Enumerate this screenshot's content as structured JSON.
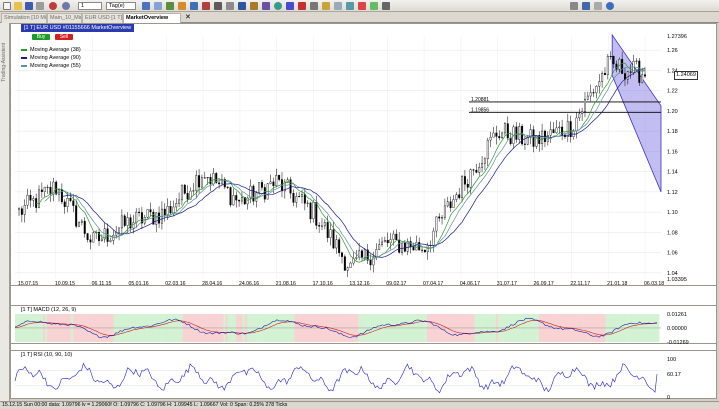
{
  "toolbar": {
    "timeframe_value": "1",
    "period_value": "Tag(e)",
    "icons": [
      "new-icon",
      "open-icon",
      "save-icon",
      "print-icon",
      "chart-type-icon",
      "cursor-icon",
      "crosshair-icon",
      "line-tool-icon",
      "zoom-icon",
      "indicator-icon",
      "settings-icon",
      "window-icon"
    ]
  },
  "tabs": [
    {
      "label": "Simulation [10 Min]",
      "active": false
    },
    {
      "label": "Main_10_Min",
      "active": false
    },
    {
      "label": "EUR USD [1 T]",
      "active": false
    },
    {
      "label": "MarketOverview",
      "active": true
    }
  ],
  "sidestrip_label": "Trading-Assistent",
  "price_pane": {
    "title": "[1 T] EUR USD  #01155666 MarketOverview",
    "buy_label": "Buy",
    "sell_label": "Sell",
    "legend": [
      {
        "label": "Moving Average  (38)",
        "color": "#2b9a2b"
      },
      {
        "label": "Moving Average  (90)",
        "color": "#1a1a8c"
      },
      {
        "label": "Moving Average  (55)",
        "color": "#5e8fa0"
      }
    ],
    "y_ticks": [
      "1.27396",
      "1.26",
      "1.24",
      "1.22",
      "1.20",
      "1.18",
      "1.16",
      "1.14",
      "1.12",
      "1.10",
      "1.08",
      "1.06",
      "1.04",
      "1.03395"
    ],
    "current_price": "1.24069",
    "level_labels": [
      "1.20881",
      "1.19856"
    ],
    "channel_color": "#7b6fe0",
    "x_ticks": [
      "15.07.15",
      "10.09.15",
      "06.11.15",
      "05.01.16",
      "02.03.16",
      "28.04.16",
      "24.06.16",
      "21.08.16",
      "17.10.16",
      "13.12.16",
      "09.02.17",
      "07.04.17",
      "04.06.17",
      "31.07.17",
      "26.09.17",
      "22.11.17",
      "21.01.18",
      "06.03.18"
    ]
  },
  "macd_pane": {
    "title": "[1 T] MACD  (12, 26, 9)",
    "y_ticks": [
      "0.01261",
      "0.00000",
      "-0.01269"
    ],
    "macd_color": "#1a1aa8",
    "signal_color": "#d01a1a"
  },
  "rsi_pane": {
    "title": "[1 T] RSI  (10, 90, 10)",
    "y_ticks": [
      "100",
      "60.17",
      "0"
    ],
    "rsi_color": "#2222cc"
  },
  "status_bar": {
    "text": "15.12.15 Sun  00:00 data: 1.09796 lv = 1.29060f     O: 1.09796 C: 1.09796 H: 1.09945 L: 1.09667 Vol: 0 Span: 0.25% 278 Ticks"
  },
  "chart_data": {
    "type": "candlestick",
    "instrument": "EUR USD",
    "x_range": [
      "15.07.15",
      "06.03.18"
    ],
    "ylim": [
      1.03395,
      1.27396
    ],
    "close_anchors": [
      {
        "x": "15.07.15",
        "y": 1.1
      },
      {
        "x": "10.09.15",
        "y": 1.125
      },
      {
        "x": "06.11.15",
        "y": 1.07
      },
      {
        "x": "05.01.16",
        "y": 1.09
      },
      {
        "x": "02.03.16",
        "y": 1.1
      },
      {
        "x": "28.04.16",
        "y": 1.14
      },
      {
        "x": "24.06.16",
        "y": 1.11
      },
      {
        "x": "21.08.16",
        "y": 1.13
      },
      {
        "x": "17.10.16",
        "y": 1.1
      },
      {
        "x": "13.12.16",
        "y": 1.045
      },
      {
        "x": "09.02.17",
        "y": 1.07
      },
      {
        "x": "07.04.17",
        "y": 1.065
      },
      {
        "x": "04.06.17",
        "y": 1.125
      },
      {
        "x": "31.07.17",
        "y": 1.18
      },
      {
        "x": "26.09.17",
        "y": 1.17
      },
      {
        "x": "22.11.17",
        "y": 1.185
      },
      {
        "x": "21.01.18",
        "y": 1.245
      },
      {
        "x": "06.03.18",
        "y": 1.237
      }
    ],
    "horizontal_levels": [
      1.20881,
      1.19856
    ],
    "channel": {
      "start": "21.01.18",
      "upper_start": 1.275,
      "upper_end": 1.205,
      "lower_start": 1.235,
      "lower_end": 1.12
    },
    "series": [
      {
        "name": "Moving Average  (38)"
      },
      {
        "name": "Moving Average  (90)"
      },
      {
        "name": "Moving Average  (55)"
      }
    ],
    "macd": {
      "ylim": [
        -0.01269,
        0.01261
      ]
    },
    "rsi": {
      "ylim": [
        0,
        100
      ],
      "last": 60.17
    }
  }
}
